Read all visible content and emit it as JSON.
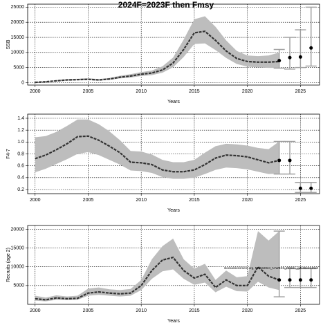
{
  "chart_data": [
    {
      "type": "line",
      "title": "2024F=2023F then Fmsy",
      "xlabel": "Years",
      "ylabel": "SSB",
      "x": [
        2000,
        2001,
        2002,
        2003,
        2004,
        2005,
        2006,
        2007,
        2008,
        2009,
        2010,
        2011,
        2012,
        2013,
        2014,
        2015,
        2016,
        2017,
        2018,
        2019,
        2020,
        2021,
        2022,
        2023
      ],
      "values": [
        100,
        300,
        600,
        900,
        1000,
        1100,
        900,
        1200,
        1800,
        2200,
        2800,
        3200,
        4200,
        6500,
        11000,
        16500,
        17000,
        14000,
        10500,
        8000,
        7000,
        6800,
        6800,
        7000
      ],
      "lower": [
        50,
        200,
        450,
        700,
        800,
        850,
        700,
        950,
        1400,
        1700,
        2200,
        2500,
        3300,
        5100,
        8500,
        12800,
        13000,
        10800,
        8200,
        6200,
        5300,
        5000,
        4900,
        4900
      ],
      "upper": [
        200,
        450,
        800,
        1200,
        1300,
        1450,
        1200,
        1550,
        2300,
        2800,
        3500,
        4000,
        5400,
        8300,
        14300,
        21000,
        22000,
        18500,
        14000,
        10500,
        9000,
        8800,
        9000,
        10000
      ],
      "forecast": {
        "x": [
          2023,
          2024,
          2025,
          2026
        ],
        "values": [
          7300,
          8300,
          8500,
          11500
        ],
        "lower": [
          4800,
          4500,
          5000,
          5500
        ],
        "upper": [
          11000,
          15000,
          17500,
          25000
        ]
      },
      "xlim": [
        1999.3,
        2026.8
      ],
      "ylim": [
        -800,
        26000
      ],
      "xticks": [
        2000,
        2005,
        2010,
        2015,
        2020,
        2025
      ],
      "yticks": [
        0,
        5000,
        10000,
        15000,
        20000,
        25000
      ],
      "grid": true,
      "line_color": "#333333",
      "band_color": "#bdbdbd",
      "forecast_color": "#a0a0a0"
    },
    {
      "type": "line",
      "xlabel": "Years",
      "ylabel": "F4-7",
      "x": [
        2000,
        2001,
        2002,
        2003,
        2004,
        2005,
        2006,
        2007,
        2008,
        2009,
        2010,
        2011,
        2012,
        2013,
        2014,
        2015,
        2016,
        2017,
        2018,
        2019,
        2020,
        2021,
        2022,
        2023
      ],
      "values": [
        0.72,
        0.78,
        0.87,
        0.97,
        1.09,
        1.1,
        1.03,
        0.93,
        0.82,
        0.66,
        0.65,
        0.62,
        0.53,
        0.5,
        0.5,
        0.53,
        0.62,
        0.73,
        0.78,
        0.77,
        0.75,
        0.7,
        0.65,
        0.69
      ],
      "lower": [
        0.49,
        0.55,
        0.63,
        0.71,
        0.8,
        0.83,
        0.78,
        0.7,
        0.62,
        0.52,
        0.51,
        0.48,
        0.41,
        0.38,
        0.38,
        0.4,
        0.46,
        0.53,
        0.57,
        0.56,
        0.54,
        0.5,
        0.46,
        0.47
      ],
      "upper": [
        1.08,
        1.1,
        1.17,
        1.27,
        1.38,
        1.38,
        1.3,
        1.18,
        1.03,
        0.85,
        0.84,
        0.79,
        0.7,
        0.66,
        0.66,
        0.7,
        0.82,
        0.93,
        0.97,
        0.96,
        0.94,
        0.9,
        0.88,
        1.01
      ],
      "forecast": {
        "x": [
          2023,
          2024,
          2025,
          2026
        ],
        "values": [
          0.69,
          0.69,
          0.22,
          0.22
        ],
        "lower": [
          0.46,
          0.46,
          0.15,
          0.15
        ],
        "upper": [
          1.01,
          1.01,
          0.32,
          0.32
        ]
      },
      "xlim": [
        1999.3,
        2026.8
      ],
      "ylim": [
        0.13,
        1.47
      ],
      "xticks": [
        2000,
        2005,
        2010,
        2015,
        2020,
        2025
      ],
      "yticks": [
        0.2,
        0.4,
        0.6,
        0.8,
        {
          "value": 1.0,
          "label": "1.0"
        },
        1.2,
        1.4
      ],
      "grid": true,
      "line_color": "#333333",
      "band_color": "#bdbdbd",
      "forecast_color": "#a0a0a0"
    },
    {
      "type": "line",
      "xlabel": "Years",
      "ylabel": "Recruits (age 2)",
      "annotation": "stockassessment.org, NSAS2024_N-WBSS_FEB21_gds38e2640e0",
      "x": [
        2000,
        2001,
        2002,
        2003,
        2004,
        2005,
        2006,
        2007,
        2008,
        2009,
        2010,
        2011,
        2012,
        2013,
        2014,
        2015,
        2016,
        2017,
        2018,
        2019,
        2020,
        2021,
        2022,
        2023
      ],
      "values": [
        1500,
        1200,
        1700,
        1500,
        1600,
        3000,
        3300,
        3000,
        2800,
        3000,
        5000,
        9000,
        11800,
        12500,
        9000,
        7000,
        8000,
        4500,
        6500,
        5000,
        5000,
        10000,
        7500,
        6500
      ],
      "lower": [
        1000,
        800,
        1200,
        1100,
        1200,
        2300,
        2500,
        2300,
        2100,
        2300,
        3800,
        6800,
        8800,
        9300,
        6800,
        5200,
        5800,
        3200,
        4700,
        3500,
        3400,
        6000,
        4500,
        3800
      ],
      "upper": [
        2300,
        1800,
        2400,
        2100,
        2300,
        4200,
        4500,
        4000,
        3800,
        4100,
        6500,
        12000,
        15500,
        17500,
        12000,
        9500,
        10800,
        6500,
        9000,
        7200,
        7500,
        19500,
        17000,
        19500
      ],
      "forecast": {
        "x": [
          2023,
          2024,
          2025,
          2026
        ],
        "values": [
          6500,
          6500,
          6500,
          6500
        ],
        "lower": [
          2000,
          4500,
          4500,
          4500
        ],
        "upper": [
          19500,
          9500,
          9500,
          9500
        ]
      },
      "xlim": [
        1999.3,
        2026.8
      ],
      "ylim": [
        0,
        21000
      ],
      "xticks": [
        2000,
        2005,
        2010,
        2015,
        2020,
        2025
      ],
      "yticks": [
        5000,
        10000,
        15000,
        20000
      ],
      "grid": true,
      "line_color": "#333333",
      "band_color": "#bdbdbd",
      "forecast_color": "#a0a0a0"
    }
  ]
}
